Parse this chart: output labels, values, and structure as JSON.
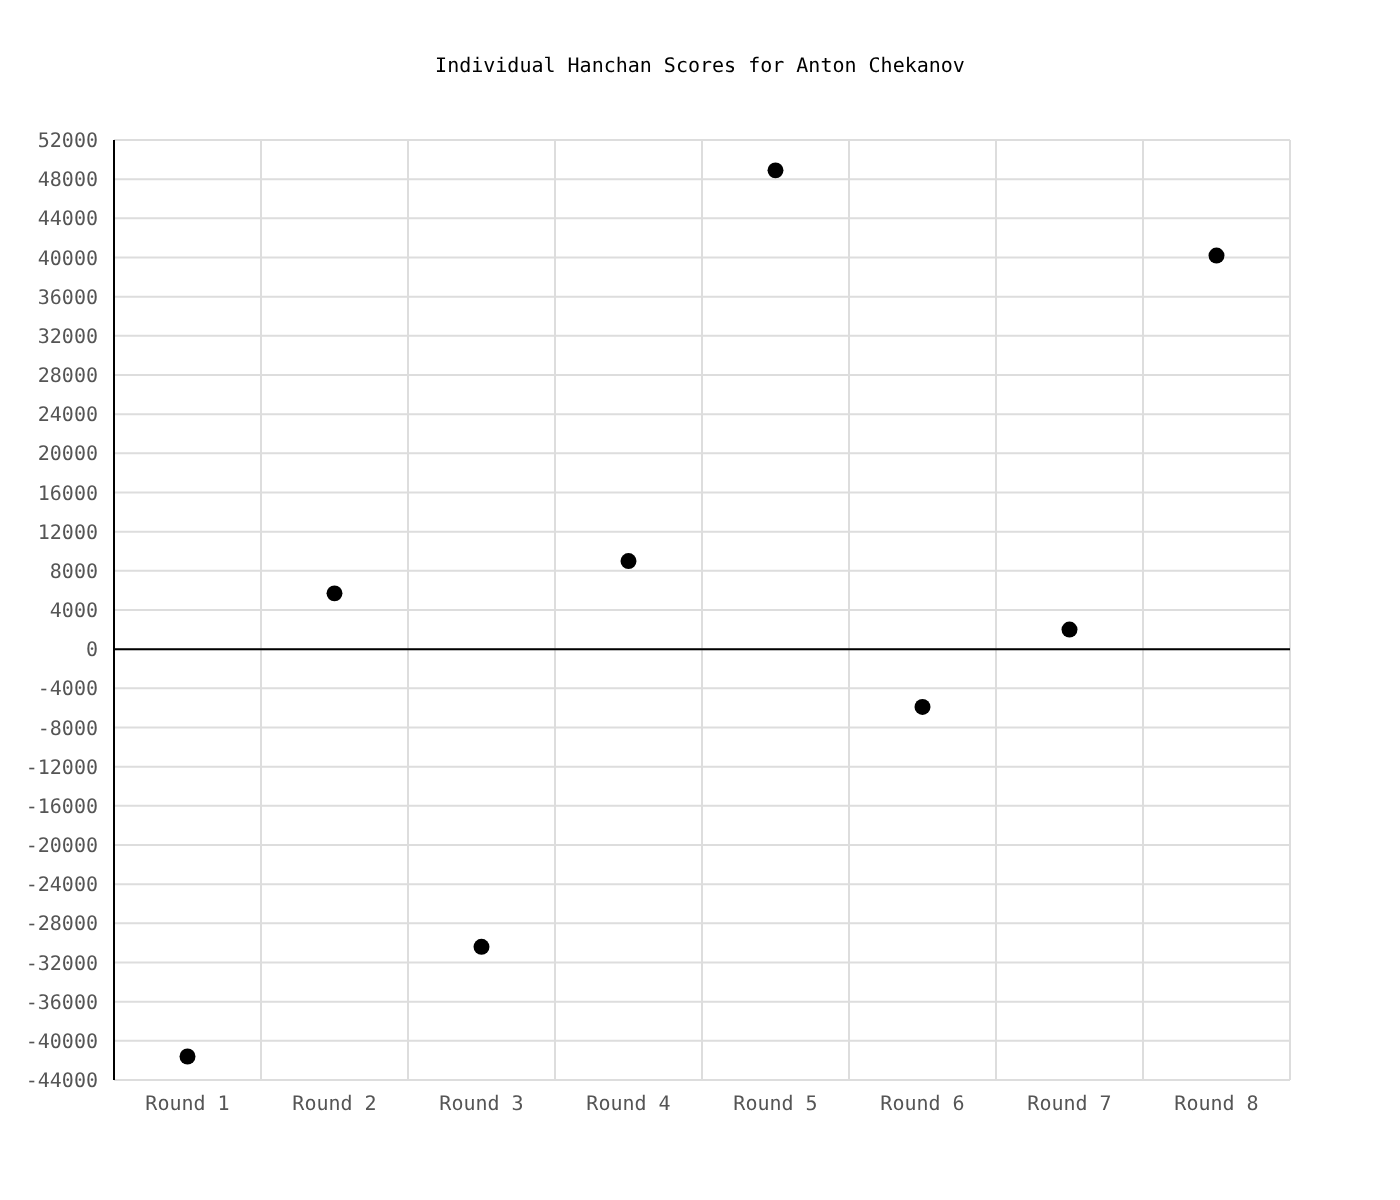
{
  "chart_data": {
    "type": "scatter",
    "title": "Individual Hanchan Scores for Anton Chekanov",
    "categories": [
      "Round 1",
      "Round 2",
      "Round 3",
      "Round 4",
      "Round 5",
      "Round 6",
      "Round 7",
      "Round 8"
    ],
    "values": [
      -41600,
      5700,
      -30400,
      9000,
      48900,
      -5900,
      2000,
      40200
    ],
    "color": "#000000",
    "ylim": [
      -44000,
      52000
    ],
    "yticks": [
      -44000,
      -40000,
      -36000,
      -32000,
      -28000,
      -24000,
      -20000,
      -16000,
      -12000,
      -8000,
      -4000,
      0,
      4000,
      8000,
      12000,
      16000,
      20000,
      24000,
      28000,
      32000,
      36000,
      40000,
      44000,
      48000,
      52000
    ],
    "grid": true,
    "marker": "circle",
    "ref_lines": [
      {
        "axis": "y",
        "value": 0,
        "color": "#000000"
      }
    ]
  }
}
